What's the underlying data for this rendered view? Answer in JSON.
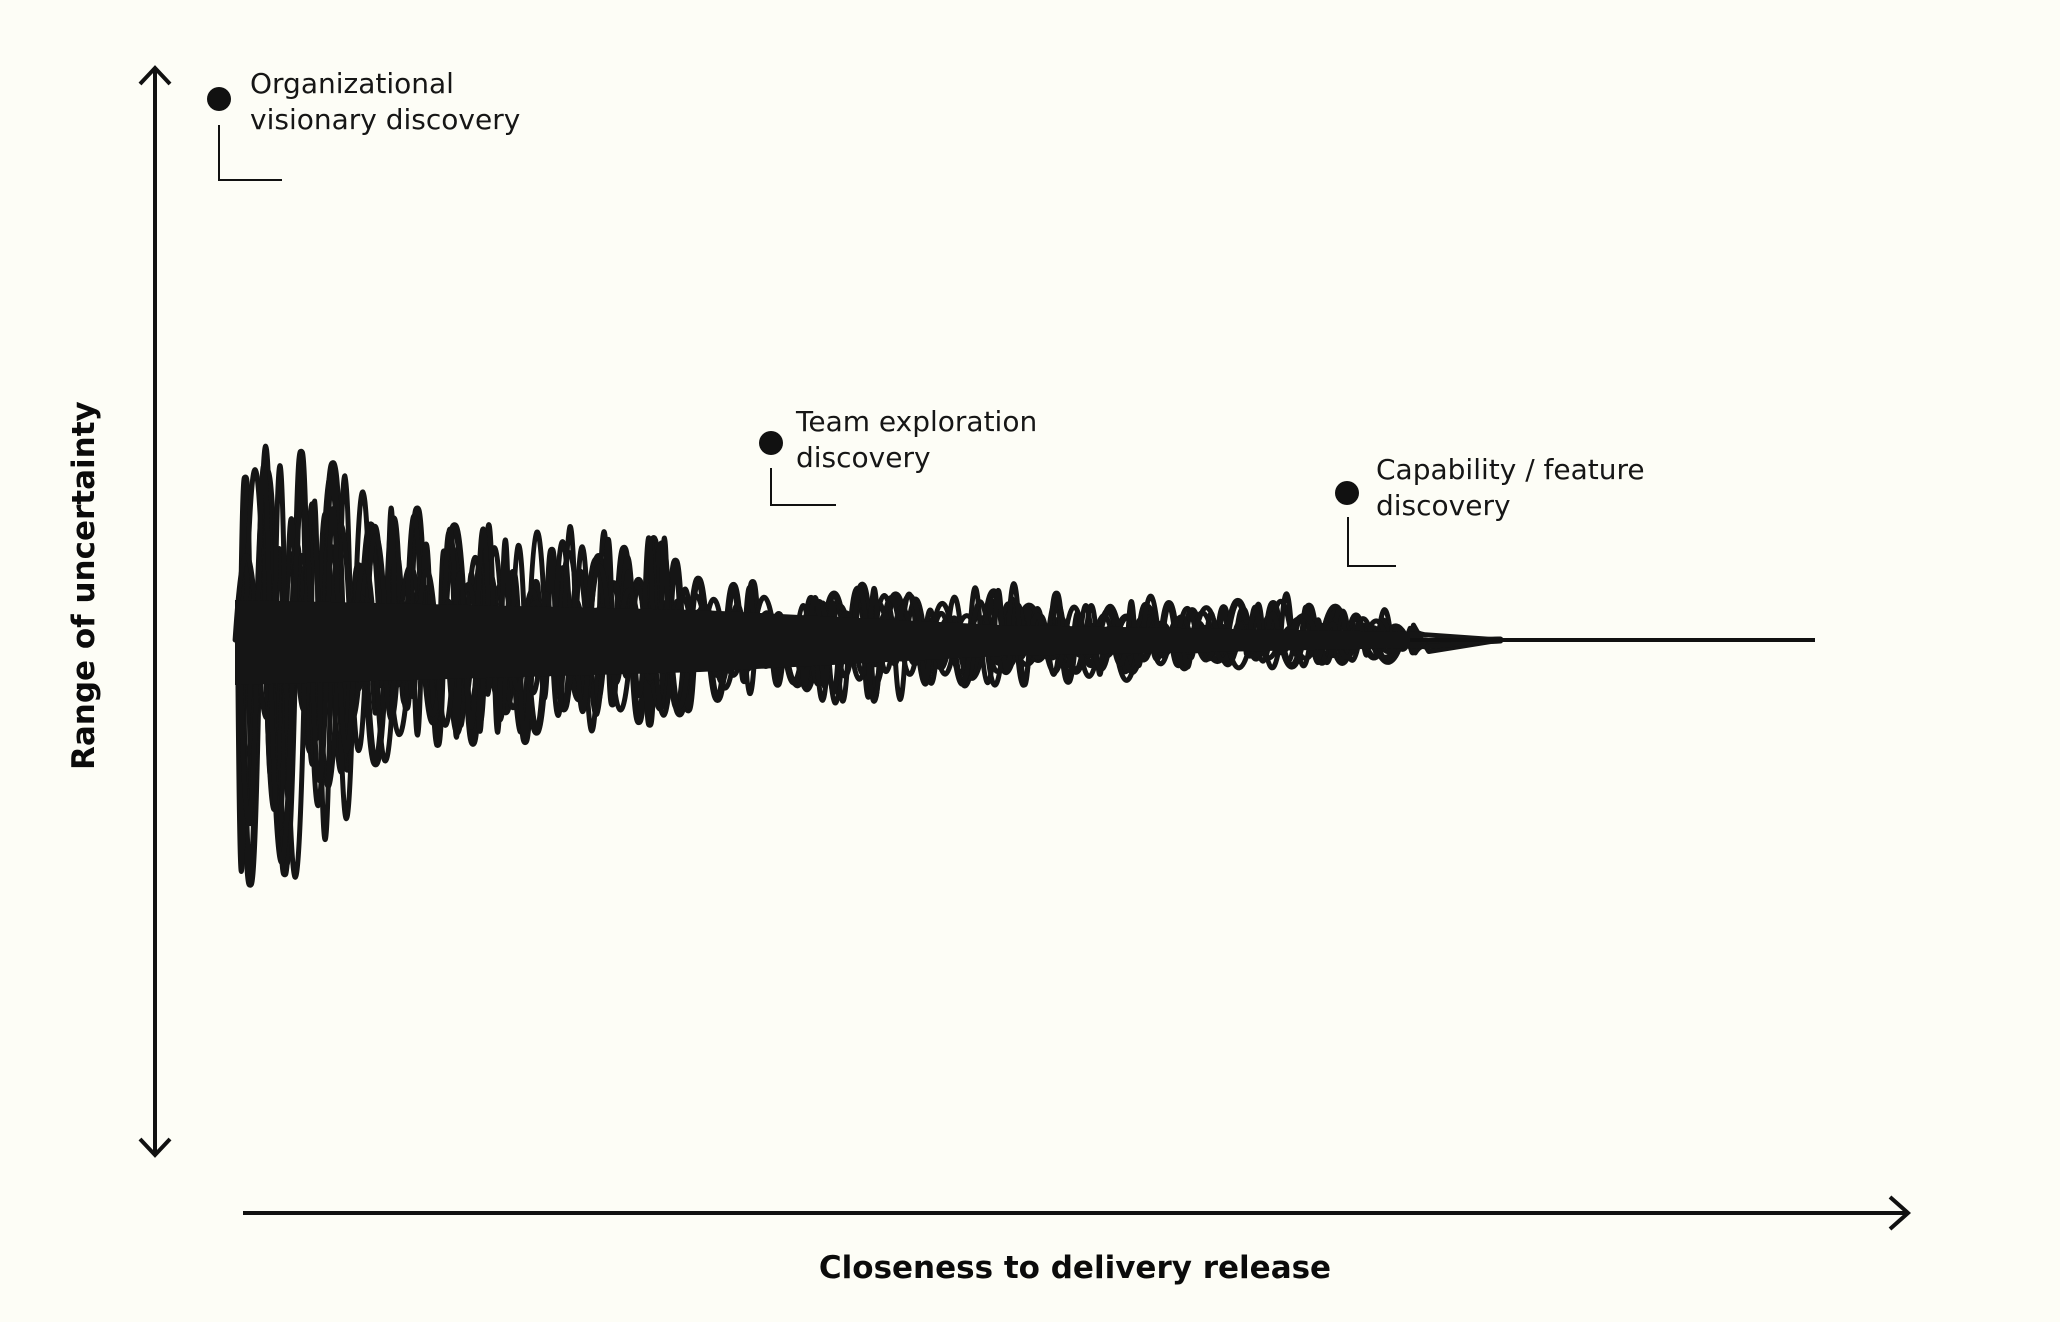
{
  "diagram": {
    "y_axis_label": "Range of uncertainty",
    "x_axis_label": "Closeness to delivery release",
    "callouts": [
      {
        "line1": "Organizational",
        "line2": "visionary discovery"
      },
      {
        "line1": "Team exploration",
        "line2": "discovery"
      },
      {
        "line1": "Capability / feature",
        "line2": "discovery"
      }
    ],
    "colors": {
      "background": "#fdfdf6",
      "ink": "#111111"
    }
  }
}
